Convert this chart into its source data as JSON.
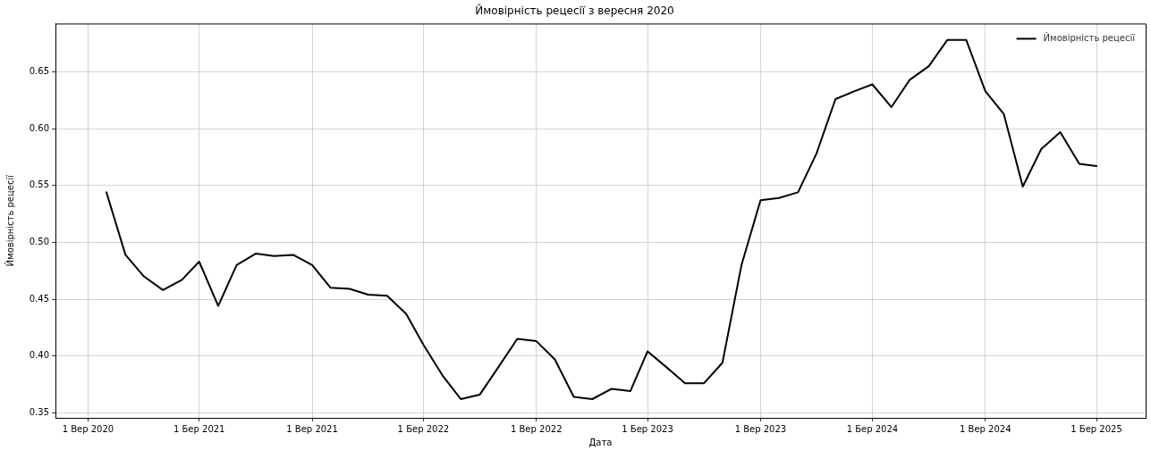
{
  "chart_data": {
    "type": "line",
    "title": "Ймовірність рецесії з вересня 2020",
    "xlabel": "Дата",
    "ylabel": "Ймовірність рецесії",
    "x": [
      "2020-10",
      "2020-11",
      "2020-12",
      "2021-01",
      "2021-02",
      "2021-03",
      "2021-04",
      "2021-05",
      "2021-06",
      "2021-07",
      "2021-08",
      "2021-09",
      "2021-10",
      "2021-11",
      "2021-12",
      "2022-01",
      "2022-02",
      "2022-03",
      "2022-04",
      "2022-05",
      "2022-06",
      "2022-07",
      "2022-08",
      "2022-09",
      "2022-10",
      "2022-11",
      "2022-12",
      "2023-01",
      "2023-02",
      "2023-03",
      "2023-04",
      "2023-05",
      "2023-06",
      "2023-07",
      "2023-08",
      "2023-09",
      "2023-10",
      "2023-11",
      "2023-12",
      "2024-01",
      "2024-02",
      "2024-03",
      "2024-04",
      "2024-05",
      "2024-06",
      "2024-07",
      "2024-08",
      "2024-09",
      "2024-10",
      "2024-11",
      "2024-12",
      "2025-01",
      "2025-02",
      "2025-03"
    ],
    "series": [
      {
        "name": "Ймовірність рецесії",
        "color": "#000000",
        "values": [
          0.544,
          0.489,
          0.47,
          0.458,
          0.467,
          0.483,
          0.444,
          0.48,
          0.49,
          0.488,
          0.489,
          0.48,
          0.46,
          0.459,
          0.454,
          0.453,
          0.437,
          0.41,
          0.383,
          0.362,
          0.366,
          0.39,
          0.415,
          0.413,
          0.397,
          0.364,
          0.362,
          0.371,
          0.369,
          0.404,
          0.39,
          0.376,
          0.376,
          0.394,
          0.48,
          0.537,
          0.539,
          0.544,
          0.578,
          0.626,
          0.633,
          0.639,
          0.619,
          0.643,
          0.655,
          0.678,
          0.678,
          0.633,
          0.613,
          0.549,
          0.582,
          0.597,
          0.569,
          0.567
        ]
      }
    ],
    "xlim": [
      "2020-07-10",
      "2025-05-20"
    ],
    "xticks": [
      {
        "value": "2020-09-01",
        "label": "1 Вер 2020"
      },
      {
        "value": "2021-03-01",
        "label": "1 Бер 2021"
      },
      {
        "value": "2021-09-01",
        "label": "1 Вер 2021"
      },
      {
        "value": "2022-03-01",
        "label": "1 Бер 2022"
      },
      {
        "value": "2022-09-01",
        "label": "1 Вер 2022"
      },
      {
        "value": "2023-03-01",
        "label": "1 Бер 2023"
      },
      {
        "value": "2023-09-01",
        "label": "1 Вер 2023"
      },
      {
        "value": "2024-03-01",
        "label": "1 Бер 2024"
      },
      {
        "value": "2024-09-01",
        "label": "1 Вер 2024"
      },
      {
        "value": "2025-03-01",
        "label": "1 Бер 2025"
      }
    ],
    "ylim": [
      0.3455,
      0.6925
    ],
    "yticks": [
      {
        "value": 0.35,
        "label": "0.35"
      },
      {
        "value": 0.4,
        "label": "0.40"
      },
      {
        "value": 0.45,
        "label": "0.45"
      },
      {
        "value": 0.5,
        "label": "0.50"
      },
      {
        "value": 0.55,
        "label": "0.55"
      },
      {
        "value": 0.6,
        "label": "0.60"
      },
      {
        "value": 0.65,
        "label": "0.65"
      }
    ],
    "grid": true,
    "legend": "top right",
    "line_style": "solid",
    "marker": "none"
  }
}
